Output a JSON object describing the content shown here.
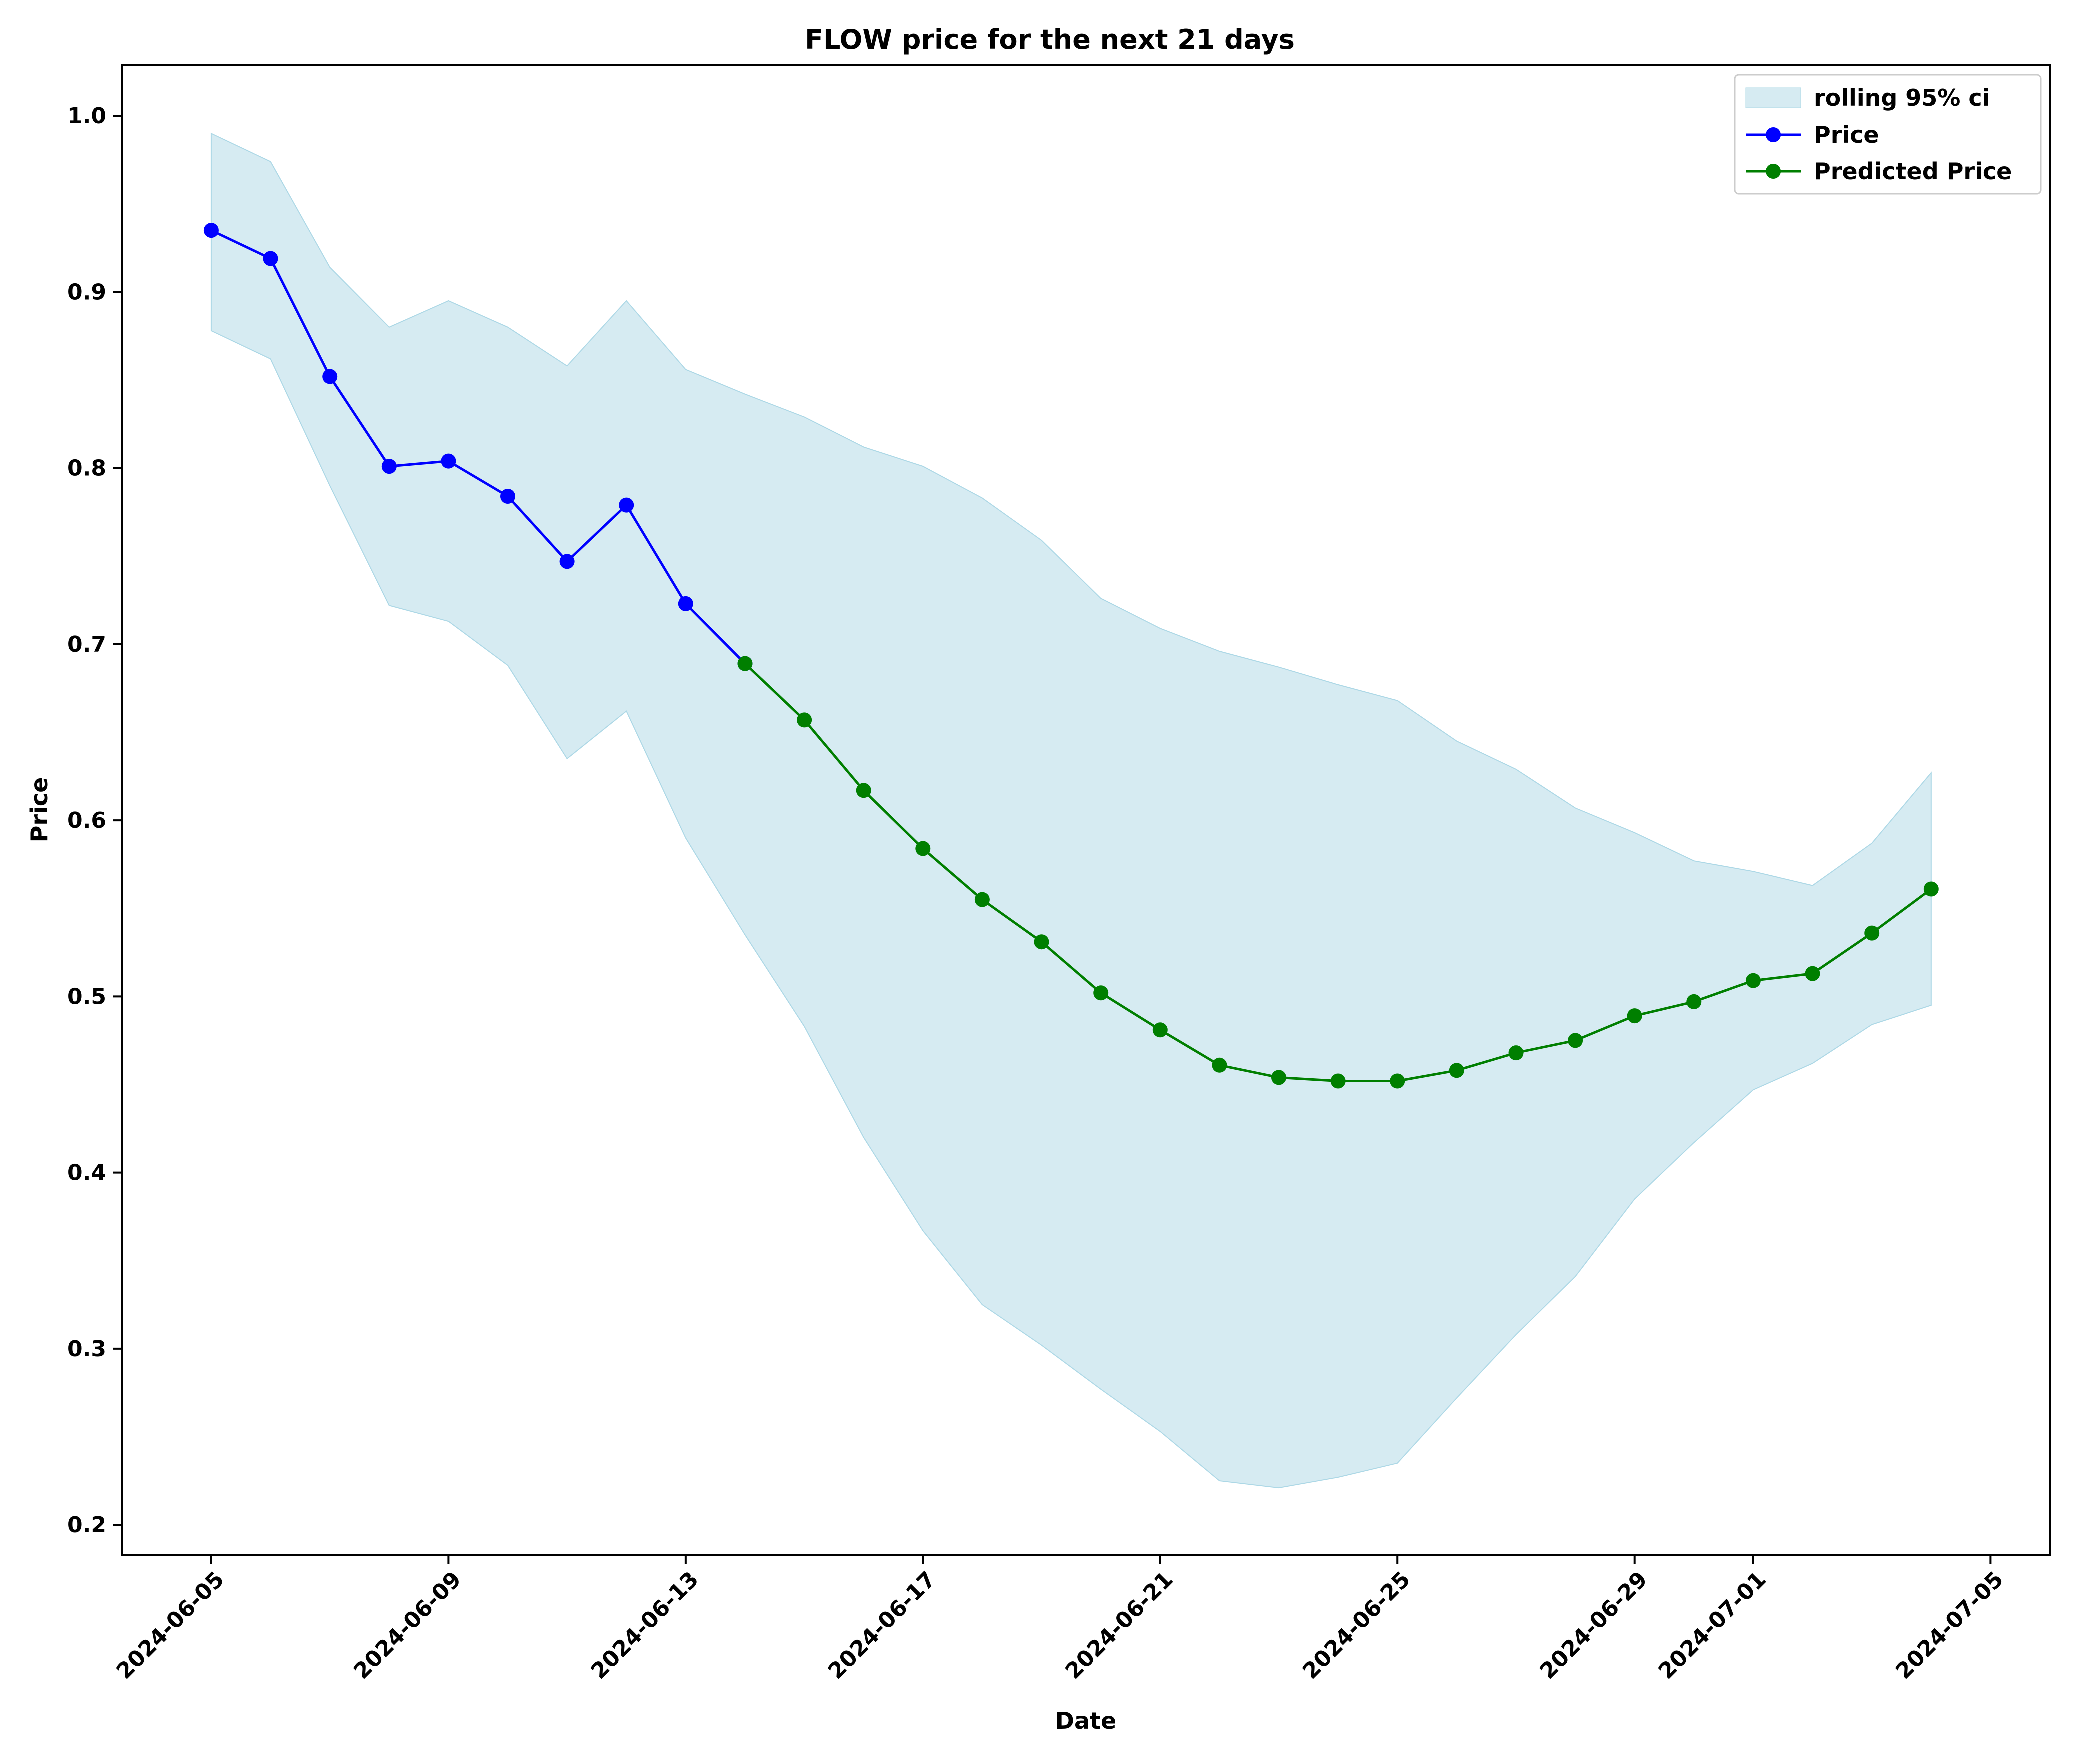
{
  "chart_data": {
    "type": "line",
    "title": "FLOW price for the next 21 days",
    "xlabel": "Date",
    "ylabel": "Price",
    "x_axis": {
      "kind": "date",
      "range": [
        "2024-06-03T12:00",
        "2024-07-06"
      ],
      "ticks": [
        "2024-06-05",
        "2024-06-09",
        "2024-06-13",
        "2024-06-17",
        "2024-06-21",
        "2024-06-25",
        "2024-06-29",
        "2024-07-01",
        "2024-07-05"
      ]
    },
    "y_axis": {
      "range": [
        0.183,
        1.029
      ],
      "ticks": [
        "0.2",
        "0.3",
        "0.4",
        "0.5",
        "0.6",
        "0.7",
        "0.8",
        "0.9",
        "1.0"
      ]
    },
    "grid": false,
    "legend": {
      "position": "top-right",
      "entries": [
        "rolling 95% ci",
        "Price",
        "Predicted Price"
      ]
    },
    "series": [
      {
        "name": "Price",
        "color": "#0000ff",
        "marker": "circle",
        "points": [
          {
            "x": "2024-06-05",
            "y": 0.935
          },
          {
            "x": "2024-06-06",
            "y": 0.919
          },
          {
            "x": "2024-06-07",
            "y": 0.852
          },
          {
            "x": "2024-06-08",
            "y": 0.801
          },
          {
            "x": "2024-06-09",
            "y": 0.804
          },
          {
            "x": "2024-06-10",
            "y": 0.784
          },
          {
            "x": "2024-06-11",
            "y": 0.747
          },
          {
            "x": "2024-06-12",
            "y": 0.779
          },
          {
            "x": "2024-06-13",
            "y": 0.723
          },
          {
            "x": "2024-06-14",
            "y": 0.689
          }
        ]
      },
      {
        "name": "Predicted Price",
        "color": "#007f00",
        "marker": "circle",
        "points": [
          {
            "x": "2024-06-14",
            "y": 0.689
          },
          {
            "x": "2024-06-15",
            "y": 0.657
          },
          {
            "x": "2024-06-16",
            "y": 0.617
          },
          {
            "x": "2024-06-17",
            "y": 0.584
          },
          {
            "x": "2024-06-18",
            "y": 0.555
          },
          {
            "x": "2024-06-19",
            "y": 0.531
          },
          {
            "x": "2024-06-20",
            "y": 0.502
          },
          {
            "x": "2024-06-21",
            "y": 0.481
          },
          {
            "x": "2024-06-22",
            "y": 0.461
          },
          {
            "x": "2024-06-23",
            "y": 0.454
          },
          {
            "x": "2024-06-24",
            "y": 0.452
          },
          {
            "x": "2024-06-25",
            "y": 0.452
          },
          {
            "x": "2024-06-26",
            "y": 0.458
          },
          {
            "x": "2024-06-27",
            "y": 0.468
          },
          {
            "x": "2024-06-28",
            "y": 0.475
          },
          {
            "x": "2024-06-29",
            "y": 0.489
          },
          {
            "x": "2024-06-30",
            "y": 0.497
          },
          {
            "x": "2024-07-01",
            "y": 0.509
          },
          {
            "x": "2024-07-02",
            "y": 0.513
          },
          {
            "x": "2024-07-03",
            "y": 0.536
          },
          {
            "x": "2024-07-04",
            "y": 0.561
          }
        ]
      }
    ],
    "confidence_band": {
      "name": "rolling 95% ci",
      "color": "#add8e6",
      "opacity": 0.5,
      "points": [
        {
          "x": "2024-06-05",
          "upper": 0.99,
          "lower": 0.878
        },
        {
          "x": "2024-06-06",
          "upper": 0.974,
          "lower": 0.862
        },
        {
          "x": "2024-06-07",
          "upper": 0.914,
          "lower": 0.79
        },
        {
          "x": "2024-06-08",
          "upper": 0.88,
          "lower": 0.722
        },
        {
          "x": "2024-06-09",
          "upper": 0.895,
          "lower": 0.713
        },
        {
          "x": "2024-06-10",
          "upper": 0.88,
          "lower": 0.688
        },
        {
          "x": "2024-06-11",
          "upper": 0.858,
          "lower": 0.635
        },
        {
          "x": "2024-06-12",
          "upper": 0.895,
          "lower": 0.662
        },
        {
          "x": "2024-06-13",
          "upper": 0.856,
          "lower": 0.59
        },
        {
          "x": "2024-06-14",
          "upper": 0.842,
          "lower": 0.535
        },
        {
          "x": "2024-06-15",
          "upper": 0.829,
          "lower": 0.483
        },
        {
          "x": "2024-06-16",
          "upper": 0.812,
          "lower": 0.42
        },
        {
          "x": "2024-06-17",
          "upper": 0.801,
          "lower": 0.367
        },
        {
          "x": "2024-06-18",
          "upper": 0.783,
          "lower": 0.325
        },
        {
          "x": "2024-06-19",
          "upper": 0.759,
          "lower": 0.302
        },
        {
          "x": "2024-06-20",
          "upper": 0.726,
          "lower": 0.277
        },
        {
          "x": "2024-06-21",
          "upper": 0.709,
          "lower": 0.253
        },
        {
          "x": "2024-06-22",
          "upper": 0.696,
          "lower": 0.225
        },
        {
          "x": "2024-06-23",
          "upper": 0.687,
          "lower": 0.221
        },
        {
          "x": "2024-06-24",
          "upper": 0.677,
          "lower": 0.227
        },
        {
          "x": "2024-06-25",
          "upper": 0.668,
          "lower": 0.235
        },
        {
          "x": "2024-06-26",
          "upper": 0.645,
          "lower": 0.272
        },
        {
          "x": "2024-06-27",
          "upper": 0.629,
          "lower": 0.308
        },
        {
          "x": "2024-06-28",
          "upper": 0.607,
          "lower": 0.341
        },
        {
          "x": "2024-06-29",
          "upper": 0.593,
          "lower": 0.385
        },
        {
          "x": "2024-06-30",
          "upper": 0.577,
          "lower": 0.417
        },
        {
          "x": "2024-07-01",
          "upper": 0.571,
          "lower": 0.447
        },
        {
          "x": "2024-07-02",
          "upper": 0.563,
          "lower": 0.462
        },
        {
          "x": "2024-07-03",
          "upper": 0.587,
          "lower": 0.484
        },
        {
          "x": "2024-07-04",
          "upper": 0.627,
          "lower": 0.495
        }
      ]
    }
  }
}
